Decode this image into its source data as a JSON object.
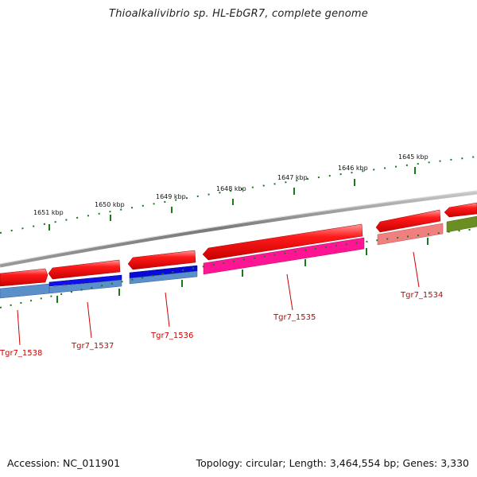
{
  "title": "Thioalkalivibrio sp. HL-EbGR7, complete genome",
  "accession": "Accession: NC_011901",
  "summary": "Topology: circular; Length: 3,464,554 bp; Genes: 3,330",
  "ruler": {
    "labels": [
      "1651 kbp",
      "1650 kbp",
      "1649 kbp",
      "1648 kbp",
      "1647 kbp",
      "1646 kbp",
      "1645 kbp"
    ]
  },
  "genes": [
    {
      "label": "Tgr7_1538",
      "color": "#5b8fc9"
    },
    {
      "label": "Tgr7_1537",
      "color": "#0000e0"
    },
    {
      "label": "Tgr7_1536",
      "color": "#0a0ad8"
    },
    {
      "label": "Tgr7_1535",
      "color": "#ff1493"
    },
    {
      "label": "Tgr7_1534",
      "color": "#f08080"
    },
    {
      "label": "",
      "color": "#6b8e23"
    }
  ],
  "colors": {
    "cds": "#ff0000",
    "backbone": "#8c8c8c",
    "ticks": "#1a7a1a",
    "gene_label": "#cc0000"
  }
}
